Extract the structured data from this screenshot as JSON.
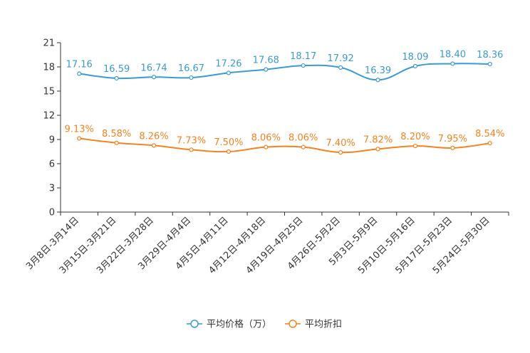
{
  "chart_data": {
    "type": "line",
    "categories": [
      "3月8日-3月14日",
      "3月15日-3月21日",
      "3月22日-3月28日",
      "3月29日-4月4日",
      "4月5日-4月11日",
      "4月12日-4月18日",
      "4月19日-4月25日",
      "4月26日-5月2日",
      "5月3日-5月9日",
      "5月10日-5月16日",
      "5月17日-5月23日",
      "5月24日-5月30日"
    ],
    "ylim": [
      0,
      21
    ],
    "yticks": [
      0,
      3,
      6,
      9,
      12,
      15,
      18,
      21
    ],
    "series": [
      {
        "name": "平均价格（万）",
        "color": "#3a9ad3",
        "values": [
          17.16,
          16.59,
          16.74,
          16.67,
          17.26,
          17.68,
          18.17,
          17.92,
          16.39,
          18.09,
          18.4,
          18.36
        ],
        "labels": [
          "17.16",
          "16.59",
          "16.74",
          "16.67",
          "17.26",
          "17.68",
          "18.17",
          "17.92",
          "16.39",
          "18.09",
          "18.40",
          "18.36"
        ]
      },
      {
        "name": "平均折扣",
        "color": "#f5821f",
        "values": [
          9.13,
          8.58,
          8.26,
          7.73,
          7.5,
          8.06,
          8.06,
          7.4,
          7.82,
          8.2,
          7.95,
          8.54
        ],
        "labels": [
          "9.13%",
          "8.58%",
          "8.26%",
          "7.73%",
          "7.50%",
          "8.06%",
          "8.06%",
          "7.40%",
          "7.82%",
          "8.20%",
          "7.95%",
          "8.54%"
        ]
      }
    ],
    "legend_position": "bottom-center",
    "grid": false
  }
}
